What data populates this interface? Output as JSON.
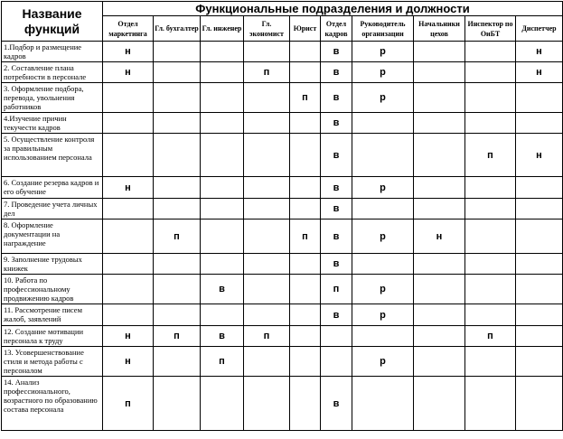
{
  "header": {
    "function_col": "Название функций",
    "group_title": "Функциональные подразделения и должности",
    "columns": [
      "Отдел маркетинга",
      "Гл. бухгалтер",
      "Гл. инженер",
      "Гл. экономист",
      "Юрист",
      "Отдел кадров",
      "Руководитель организации",
      "Начальники цехов",
      "Инспектор по ОиБТ",
      "Диспетчер"
    ]
  },
  "rows": [
    {
      "name": "1.Подбор и размещение кадров",
      "cells": [
        "н",
        "",
        "",
        "",
        "",
        "в",
        "р",
        "",
        "",
        "н"
      ]
    },
    {
      "name": "2. Составление плана потребности в персонале",
      "cells": [
        "н",
        "",
        "",
        "п",
        "",
        "в",
        "р",
        "",
        "",
        "н"
      ]
    },
    {
      "name": "3. Оформление подбора, перевода, увольнения работников",
      "cells": [
        "",
        "",
        "",
        "",
        "п",
        "в",
        "р",
        "",
        "",
        ""
      ]
    },
    {
      "name": "4.Изучение причин текучести кадров",
      "cells": [
        "",
        "",
        "",
        "",
        "",
        "в",
        "",
        "",
        "",
        ""
      ]
    },
    {
      "name": "5. Осуществление контроля за правильным использованием персонала",
      "cells": [
        "",
        "",
        "",
        "",
        "",
        "в",
        "",
        "",
        "п",
        "н"
      ]
    },
    {
      "name": "6. Создание резерва кадров и его обучение",
      "cells": [
        "н",
        "",
        "",
        "",
        "",
        "в",
        "р",
        "",
        "",
        ""
      ]
    },
    {
      "name": "7. Проведение учета личных дел",
      "cells": [
        "",
        "",
        "",
        "",
        "",
        "в",
        "",
        "",
        "",
        ""
      ]
    },
    {
      "name": "8. Оформление документации на награждение",
      "cells": [
        "",
        "п",
        "",
        "",
        "п",
        "в",
        "р",
        "н",
        "",
        ""
      ]
    },
    {
      "name": "9. Заполнение трудовых книжек",
      "cells": [
        "",
        "",
        "",
        "",
        "",
        "в",
        "",
        "",
        "",
        ""
      ]
    },
    {
      "name": "10. Работа по профессиональному продвижению кадров",
      "cells": [
        "",
        "",
        "в",
        "",
        "",
        "п",
        "р",
        "",
        "",
        ""
      ]
    },
    {
      "name": "11. Рассмотрение писем жалоб, заявлений",
      "cells": [
        "",
        "",
        "",
        "",
        "",
        "в",
        "р",
        "",
        "",
        ""
      ]
    },
    {
      "name": "12. Создание мотивации персонала к труду",
      "cells": [
        "н",
        "п",
        "в",
        "п",
        "",
        "",
        "",
        "",
        "п",
        ""
      ]
    },
    {
      "name": "13. Усовершенствование стиля и метода работы с персоналом",
      "cells": [
        "н",
        "",
        "п",
        "",
        "",
        "",
        "р",
        "",
        "",
        ""
      ]
    },
    {
      "name": "14. Анализ профессионального, возрастного по образованию состава персонала",
      "cells": [
        "п",
        "",
        "",
        "",
        "",
        "в",
        "",
        "",
        "",
        ""
      ]
    }
  ]
}
